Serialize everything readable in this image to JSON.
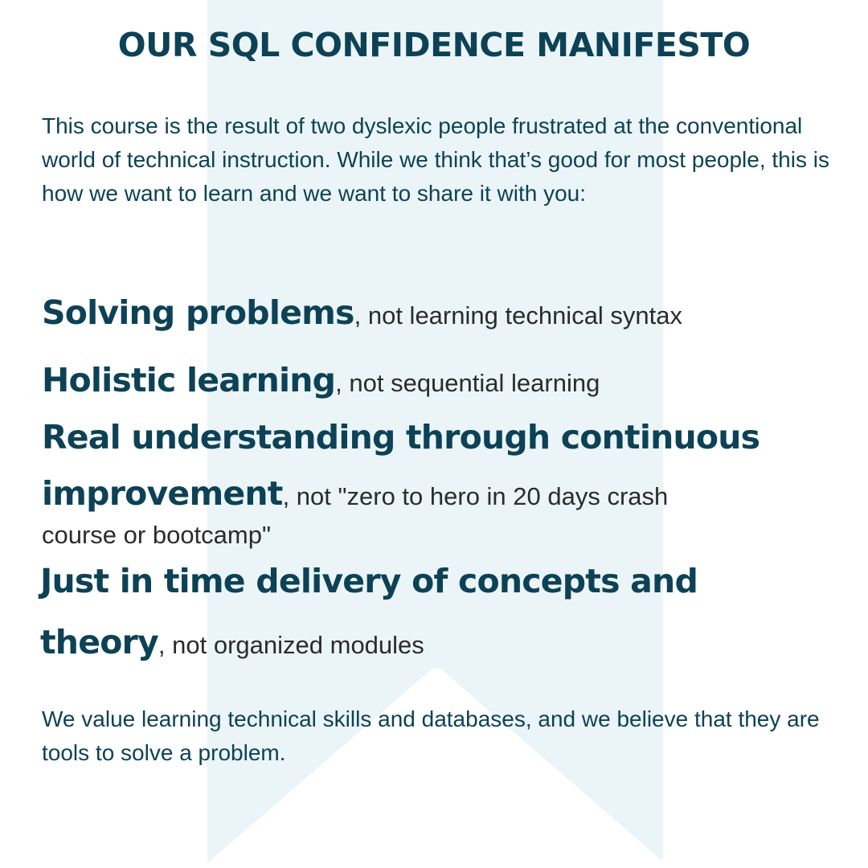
{
  "title": "OUR SQL CONFIDENCE MANIFESTO",
  "intro": "This course is the result of two dyslexic people frustrated at the conventional world of technical instruction.  While we think that’s good for most people, this is how we want to learn and we want to share it with you:",
  "principles": [
    {
      "strong": "Solving problems",
      "weak": ", not learning technical syntax"
    },
    {
      "strong": "Holistic learning",
      "weak": ", not sequential learning"
    },
    {
      "strong_line1": "Real understanding through continuous",
      "strong_line2": "improvement",
      "weak_line1": ", not \"zero to hero in 20 days crash",
      "weak_line2": "course or bootcamp\""
    },
    {
      "strong_line1": "Just in time delivery of concepts and",
      "strong_line2": "theory",
      "weak": ", not organized modules"
    }
  ],
  "outro": "We value learning technical skills and databases, and we believe that they are tools to solve a problem.",
  "colors": {
    "heading": "#0d4256",
    "body_dark": "#2b2b2b",
    "ribbon": "#ebf5f8",
    "background": "#ffffff"
  }
}
